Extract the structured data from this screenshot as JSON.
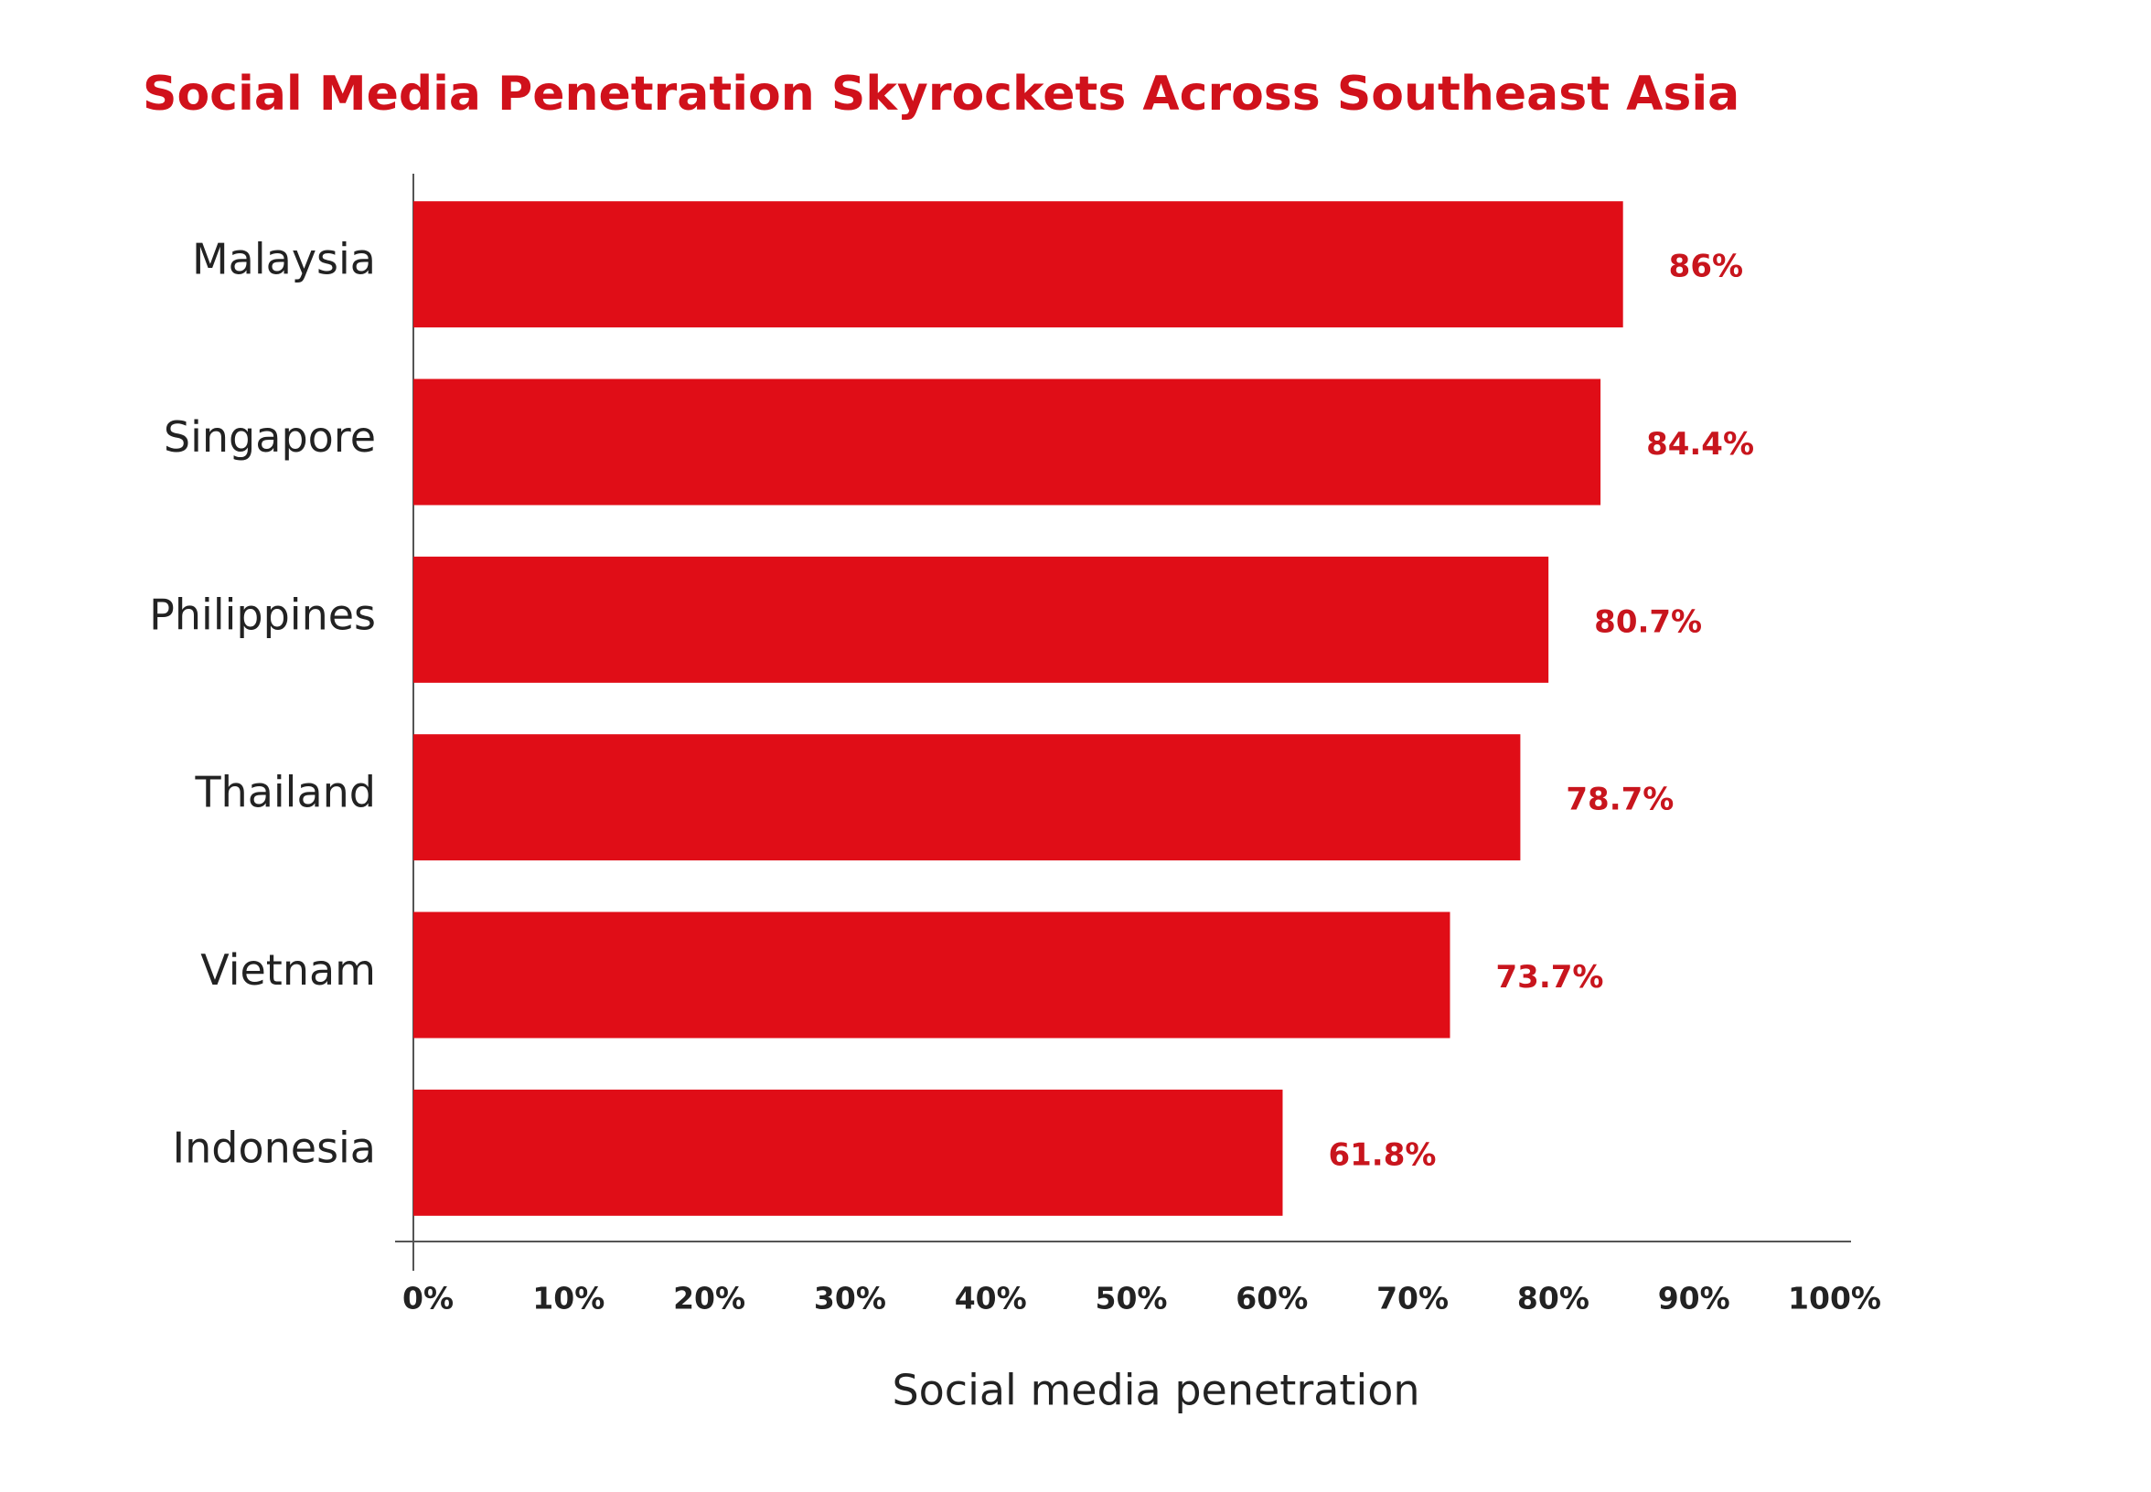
{
  "chart_data": {
    "type": "bar",
    "orientation": "horizontal",
    "title": "Social Media Penetration Skyrockets Across Southeast Asia",
    "x_label": "Social media penetration",
    "categories": [
      "Malaysia",
      "Singapore",
      "Philippines",
      "Thailand",
      "Vietnam",
      "Indonesia"
    ],
    "values": [
      86,
      84.4,
      80.7,
      78.7,
      73.7,
      61.8
    ],
    "value_labels": [
      "86%",
      "84.4%",
      "80.7%",
      "78.7%",
      "73.7%",
      "61.8%"
    ],
    "color": "#e00d17",
    "xlim": [
      0,
      100
    ],
    "xticks": [
      {
        "value": 0,
        "label": "0%"
      },
      {
        "value": 10,
        "label": "10%"
      },
      {
        "value": 20,
        "label": "20%"
      },
      {
        "value": 30,
        "label": "30%"
      },
      {
        "value": 40,
        "label": "40%"
      },
      {
        "value": 50,
        "label": "50%"
      },
      {
        "value": 60,
        "label": "60%"
      },
      {
        "value": 70,
        "label": "70%"
      },
      {
        "value": 80,
        "label": "80%"
      },
      {
        "value": 90,
        "label": "90%"
      },
      {
        "value": 100,
        "label": "100%"
      }
    ],
    "grid": false
  }
}
